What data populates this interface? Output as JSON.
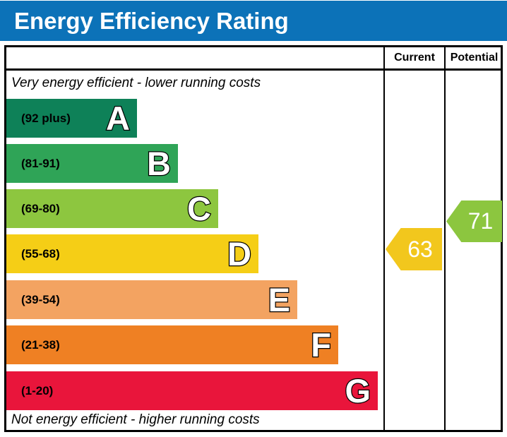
{
  "title": "Energy Efficiency Rating",
  "table": {
    "columns": {
      "current": "Current",
      "potential": "Potential"
    },
    "caption_top": "Very energy efficient - lower running costs",
    "caption_bottom": "Not energy efficient - higher running costs"
  },
  "bands": [
    {
      "letter": "A",
      "range": "(92 plus)",
      "color": "#0E8158"
    },
    {
      "letter": "B",
      "range": "(81-91)",
      "color": "#2FA457"
    },
    {
      "letter": "C",
      "range": "(69-80)",
      "color": "#8DC63F"
    },
    {
      "letter": "D",
      "range": "(55-68)",
      "color": "#F5CE16"
    },
    {
      "letter": "E",
      "range": "(39-54)",
      "color": "#F3A361"
    },
    {
      "letter": "F",
      "range": "(21-38)",
      "color": "#EF8023"
    },
    {
      "letter": "G",
      "range": "(1-20)",
      "color": "#E9153B"
    }
  ],
  "ratings": {
    "current": {
      "value": "63",
      "color": "#F2C71D"
    },
    "potential": {
      "value": "71",
      "color": "#8CC63F"
    }
  },
  "theme": {
    "header_bg": "#0C72B8",
    "header_text": "#FFFFFF"
  },
  "chart_data": {
    "type": "bar",
    "title": "Energy Efficiency Rating",
    "categories": [
      "A",
      "B",
      "C",
      "D",
      "E",
      "F",
      "G"
    ],
    "band_ranges": [
      "(92 plus)",
      "(81-91)",
      "(69-80)",
      "(55-68)",
      "(39-54)",
      "(21-38)",
      "(1-20)"
    ],
    "band_colors": [
      "#0E8158",
      "#2FA457",
      "#8DC63F",
      "#F5CE16",
      "#F3A361",
      "#EF8023",
      "#E9153B"
    ],
    "bar_relative_widths": [
      185,
      243,
      300,
      357,
      412,
      470,
      526
    ],
    "columns": [
      "Current",
      "Potential"
    ],
    "current": 63,
    "current_band": "D",
    "potential": 71,
    "potential_band": "C",
    "annotations": [
      "Very energy efficient - lower running costs",
      "Not energy efficient - higher running costs"
    ],
    "scale_min": 1,
    "scale_max": 100
  }
}
